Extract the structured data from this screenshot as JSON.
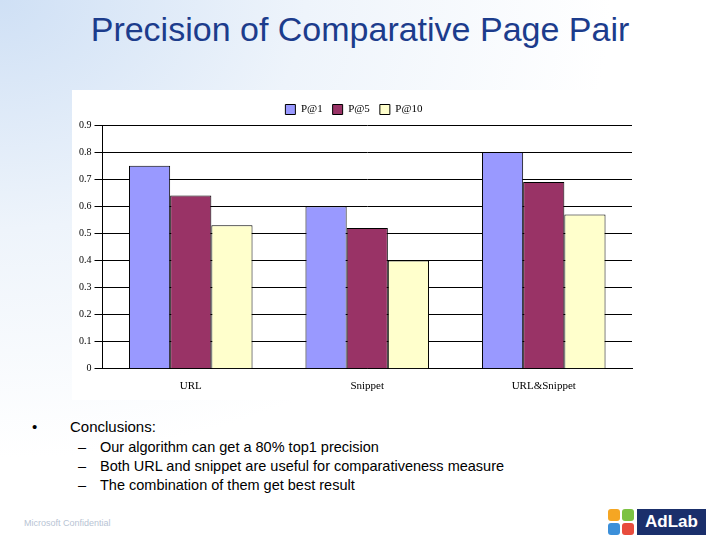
{
  "chart_data": {
    "type": "bar",
    "title": "Precision of Comparative Page Pair",
    "categories": [
      "URL",
      "Snippet",
      "URL&Snippet"
    ],
    "series": [
      {
        "name": "P@1",
        "color": "#9999ff",
        "values": [
          0.75,
          0.6,
          0.8
        ]
      },
      {
        "name": "P@5",
        "color": "#993366",
        "values": [
          0.64,
          0.52,
          0.69
        ]
      },
      {
        "name": "P@10",
        "color": "#ffffcc",
        "values": [
          0.53,
          0.4,
          0.57
        ]
      }
    ],
    "ylim": [
      0,
      0.9
    ],
    "yticks": [
      0,
      0.1,
      0.2,
      0.3,
      0.4,
      0.5,
      0.6,
      0.7,
      0.8,
      0.9
    ],
    "grid": true,
    "legend": "top"
  },
  "conclusions": {
    "heading": "Conclusions:",
    "items": [
      "Our algorithm can get a 80% top1 precision",
      "Both URL and snippet are useful for comparativeness measure",
      "The combination of them get best result"
    ]
  },
  "footer": "Microsoft Confidential",
  "logo": "AdLab"
}
